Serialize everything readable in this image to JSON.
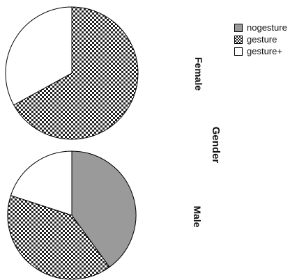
{
  "colors": {
    "nogesture": "#9a9a9a",
    "gesture_check_dark": "#222222",
    "gesture_check_light": "#ffffff",
    "gesture_plus": "#ffffff"
  },
  "legend": [
    {
      "key": "nogesture",
      "label": "nogesture"
    },
    {
      "key": "gesture",
      "label": "gesture"
    },
    {
      "key": "gesture_plus",
      "label": "gesture+"
    }
  ],
  "labels": {
    "gender": "Gender",
    "female": "Female",
    "male": "Male"
  },
  "chart_data": {
    "type": "pie",
    "grouping_label": "Gender",
    "categories": [
      "nogesture",
      "gesture",
      "gesture+"
    ],
    "pies": [
      {
        "group": "Female",
        "values": [
          0,
          67,
          33
        ]
      },
      {
        "group": "Male",
        "values": [
          40,
          40,
          20
        ]
      }
    ],
    "legend_position": "top-right"
  }
}
